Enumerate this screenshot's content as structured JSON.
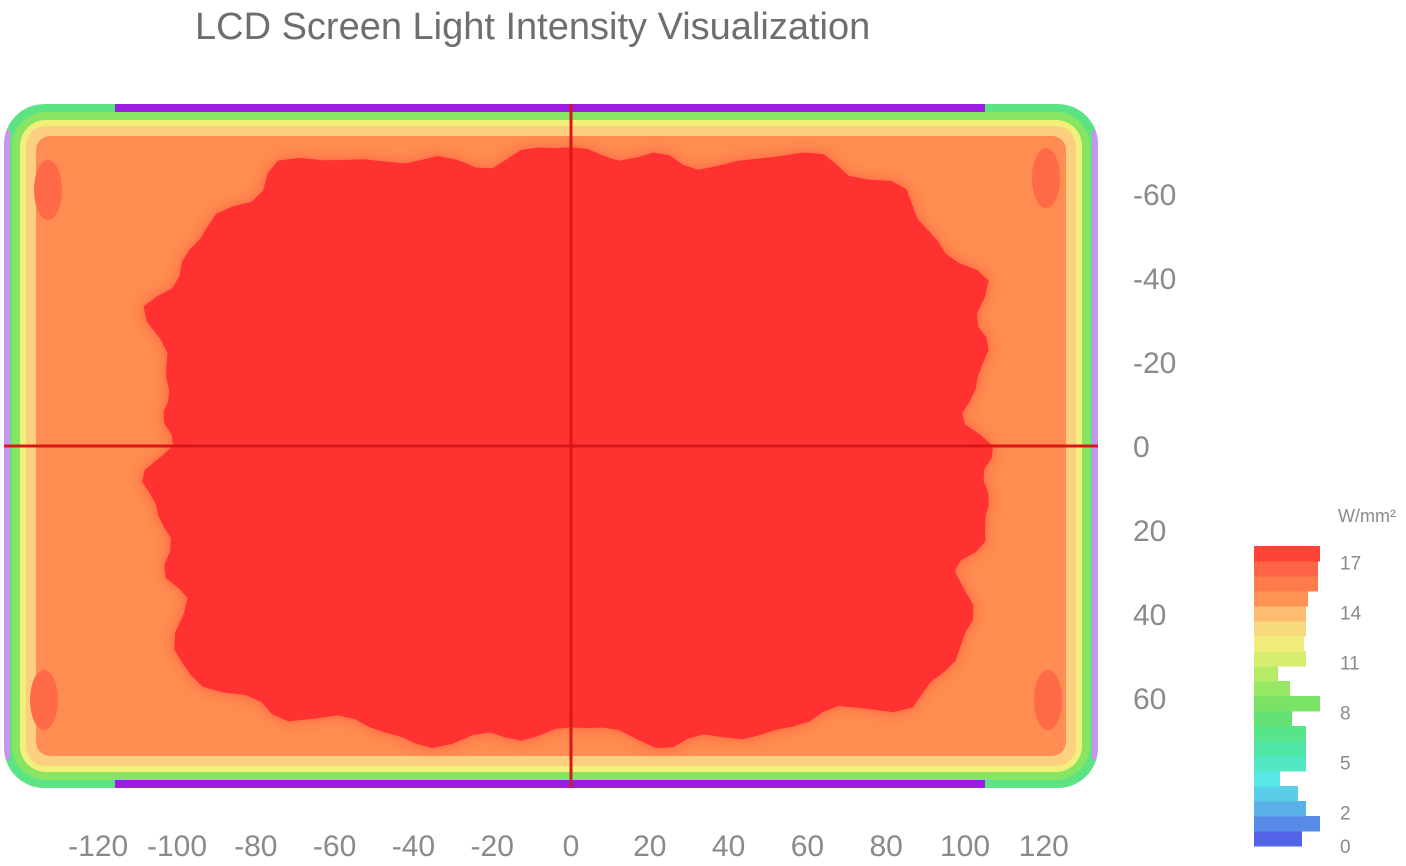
{
  "chart_data": {
    "type": "heatmap",
    "title": "LCD Screen Light Intensity Visualization",
    "xlabel": "",
    "ylabel": "",
    "x_ticks": [
      -120,
      -100,
      -80,
      -60,
      -40,
      -20,
      0,
      20,
      40,
      60,
      80,
      100,
      120
    ],
    "y_ticks": [
      -60,
      -40,
      -20,
      0,
      20,
      40,
      60
    ],
    "xlim": [
      -125,
      125
    ],
    "ylim": [
      -80,
      80
    ],
    "y_inverted": true,
    "grid": false,
    "crosshair": [
      0,
      0
    ],
    "colorbar": {
      "unit": "W/mm²",
      "ticks": [
        0,
        2,
        5,
        8,
        11,
        14,
        17
      ],
      "range": [
        0,
        18
      ]
    },
    "intensity_profile": {
      "description_levels": "center plateau to border",
      "center_value": 18,
      "inner_ring_value": 15,
      "edge_ring_value": 12,
      "border_value": 9,
      "outer_value": 2
    }
  }
}
